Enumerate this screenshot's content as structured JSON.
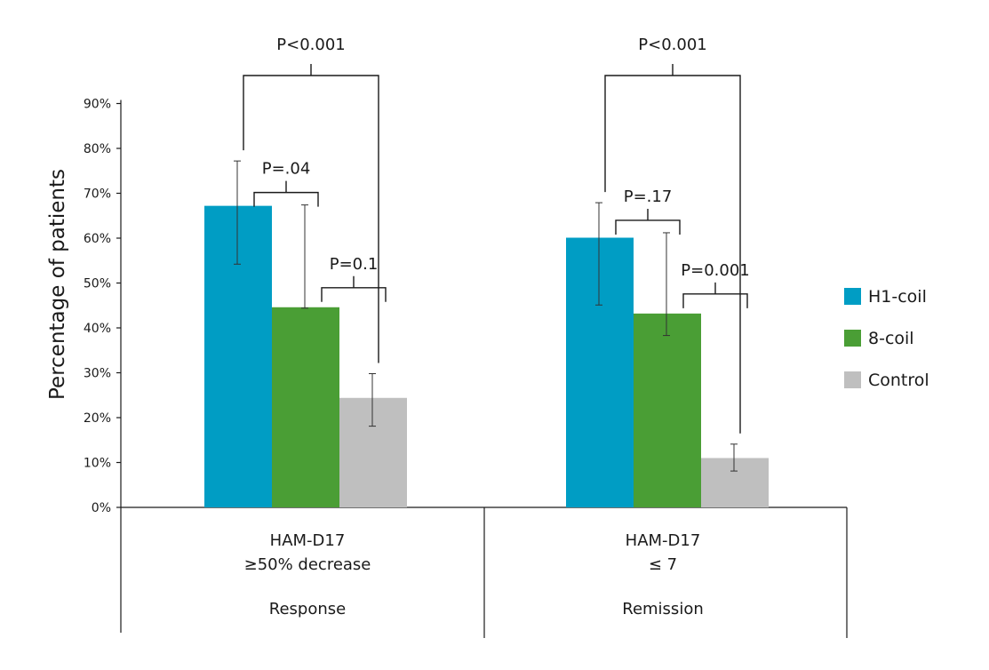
{
  "chart_data": {
    "type": "bar",
    "ylabel": "Percentage of patients",
    "ylim": [
      0,
      90
    ],
    "yticks": [
      "0%",
      "10%",
      "20%",
      "30%",
      "40%",
      "50%",
      "60%",
      "70%",
      "80%",
      "90%"
    ],
    "groups": [
      {
        "line1": "HAM-D17",
        "line2": "≥50% decrease",
        "line3": "Response"
      },
      {
        "line1": "HAM-D17",
        "line2": "≤ 7",
        "line3": "Remission"
      }
    ],
    "series": [
      {
        "name": "H1-coil",
        "color": "#009dc4",
        "values": [
          67.2,
          60.1
        ],
        "err_low": [
          54.2,
          45.1
        ],
        "err_high": [
          77.2,
          67.9
        ]
      },
      {
        "name": "8-coil",
        "color": "#4a9e35",
        "values": [
          44.6,
          43.2
        ],
        "err_low": [
          44.4,
          38.3
        ],
        "err_high": [
          67.4,
          61.2
        ]
      },
      {
        "name": "Control",
        "color": "#bfbfbf",
        "values": [
          24.4,
          11.0
        ],
        "err_low": [
          18.1,
          8.1
        ],
        "err_high": [
          29.8,
          14.1
        ]
      }
    ],
    "annotations": [
      {
        "group": 0,
        "from": 0,
        "to": 2,
        "label": "P<0.001",
        "level": "top"
      },
      {
        "group": 0,
        "from": 0,
        "to": 1,
        "label": "P=.04",
        "level": "pair"
      },
      {
        "group": 0,
        "from": 1,
        "to": 2,
        "label": "P=0.1",
        "level": "pair"
      },
      {
        "group": 1,
        "from": 0,
        "to": 2,
        "label": "P<0.001",
        "level": "top"
      },
      {
        "group": 1,
        "from": 0,
        "to": 1,
        "label": "P=.17",
        "level": "pair"
      },
      {
        "group": 1,
        "from": 1,
        "to": 2,
        "label": "P=0.001",
        "level": "pair"
      }
    ],
    "grid": false,
    "legend_position": "right"
  }
}
